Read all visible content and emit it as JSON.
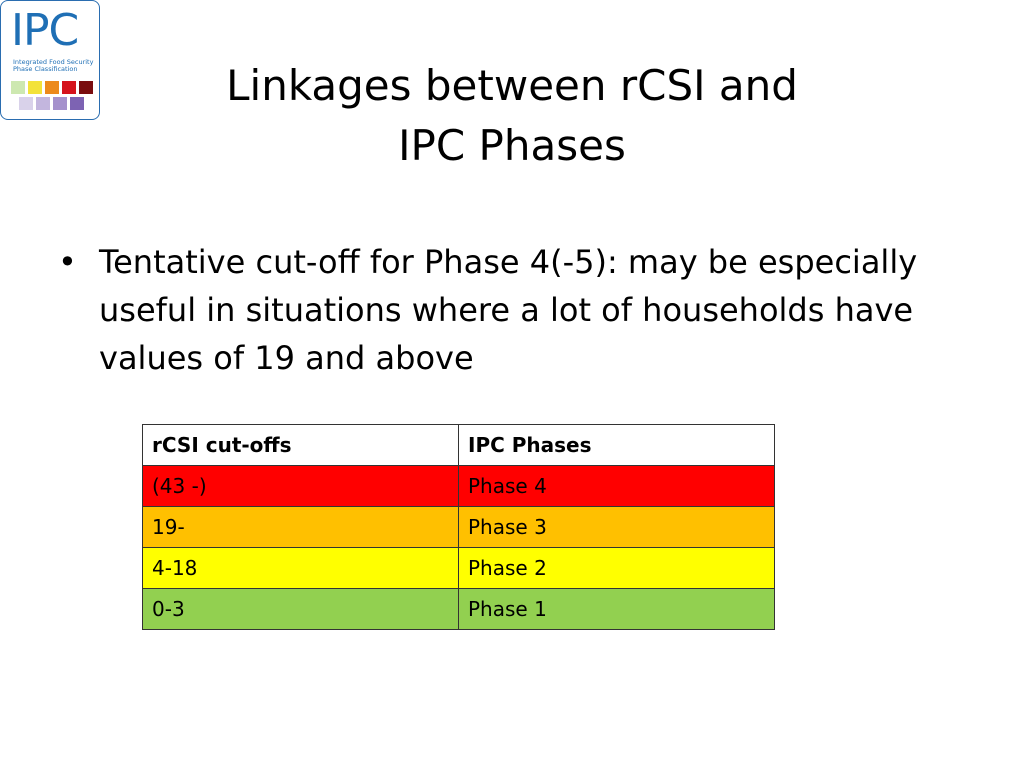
{
  "logo": {
    "acronym": "IPC",
    "subtitle_lines": [
      "Integrated Food Security",
      "Phase Classification"
    ]
  },
  "header": {
    "title_lines": [
      "Linkages between rCSI and",
      "IPC Phases"
    ]
  },
  "bullets": [
    "Tentative cut-off for Phase 4(-5): may be especially useful in situations where a lot of households have values of 19 and above"
  ],
  "table": {
    "columns": [
      "rCSI cut-offs",
      "IPC Phases"
    ],
    "rows": [
      [
        "(43 -)",
        "Phase 4"
      ],
      [
        "19-",
        "Phase 3"
      ],
      [
        "4-18",
        "Phase 2"
      ],
      [
        "0-3",
        "Phase 1"
      ]
    ]
  }
}
